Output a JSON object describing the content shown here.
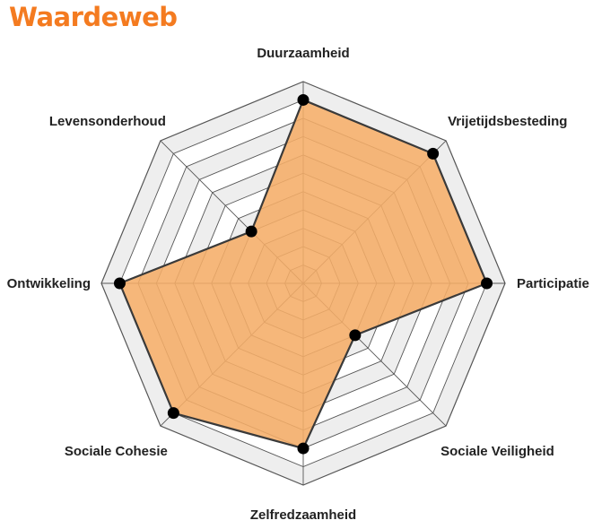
{
  "title": "Waardeweb",
  "colors": {
    "title": "#f47b20",
    "area_fill": "#f5ad68",
    "area_stroke": "#3a3a3a",
    "point": "#000000",
    "ring_fill_a": "#eeeeee",
    "ring_fill_b": "#ffffff",
    "grid": "#555555"
  },
  "chart_data": {
    "type": "radar",
    "title": "Waardeweb",
    "axes": [
      "Duurzaamheid",
      "Vrijetijdsbesteding",
      "Participatie",
      "Sociale Veiligheid",
      "Zelfredzaamheid",
      "Sociale Cohesie",
      "Ontwikkeling",
      "Levensonderhoud"
    ],
    "values": [
      10,
      10,
      10,
      4,
      9,
      10,
      10,
      4
    ],
    "range": [
      0,
      11
    ],
    "rings": 11,
    "grid": true,
    "legend": "none"
  }
}
